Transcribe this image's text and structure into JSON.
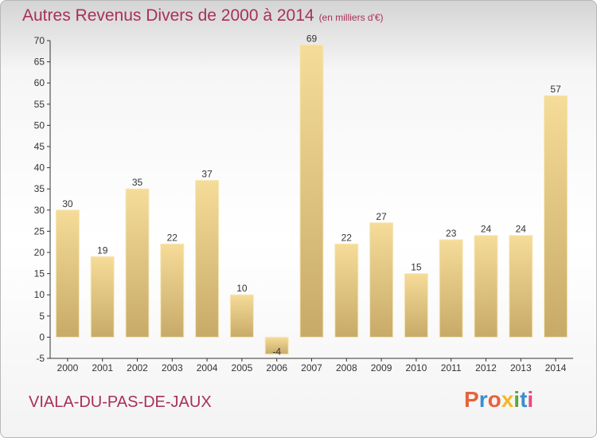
{
  "header": {
    "title": "Autres Revenus Divers de 2000 à 2014",
    "unit": "(en milliers d'€)"
  },
  "footer": {
    "commune": "VIALA-DU-PAS-DE-JAUX",
    "logo": "Proxiti",
    "logo_colors": [
      "#e8623a",
      "#3a8fd0",
      "#e8623a",
      "#f2b82a",
      "#5aa83a",
      "#3a8fd0",
      "#e84a7a"
    ]
  },
  "chart_data": {
    "type": "bar",
    "title": "Autres Revenus Divers de 2000 à 2014",
    "subtitle": "(en milliers d'€)",
    "categories": [
      "2000",
      "2001",
      "2002",
      "2003",
      "2004",
      "2005",
      "2006",
      "2007",
      "2008",
      "2009",
      "2010",
      "2011",
      "2012",
      "2013",
      "2014"
    ],
    "values": [
      30,
      19,
      35,
      22,
      37,
      10,
      -4,
      69,
      22,
      27,
      15,
      23,
      24,
      24,
      57
    ],
    "data_labels": [
      "30",
      "19",
      "35",
      "22",
      "37",
      "10",
      "-4",
      "69",
      "22",
      "27",
      "15",
      "23",
      "24",
      "24",
      "57"
    ],
    "ylim": [
      -5,
      70
    ],
    "yticks": [
      -5,
      0,
      5,
      10,
      15,
      20,
      25,
      30,
      35,
      40,
      45,
      50,
      55,
      60,
      65,
      70
    ],
    "grid": false,
    "colors": {
      "bar_light": "#f5dc98",
      "bar_dark": "#c8aa68",
      "axis": "#333333"
    }
  }
}
